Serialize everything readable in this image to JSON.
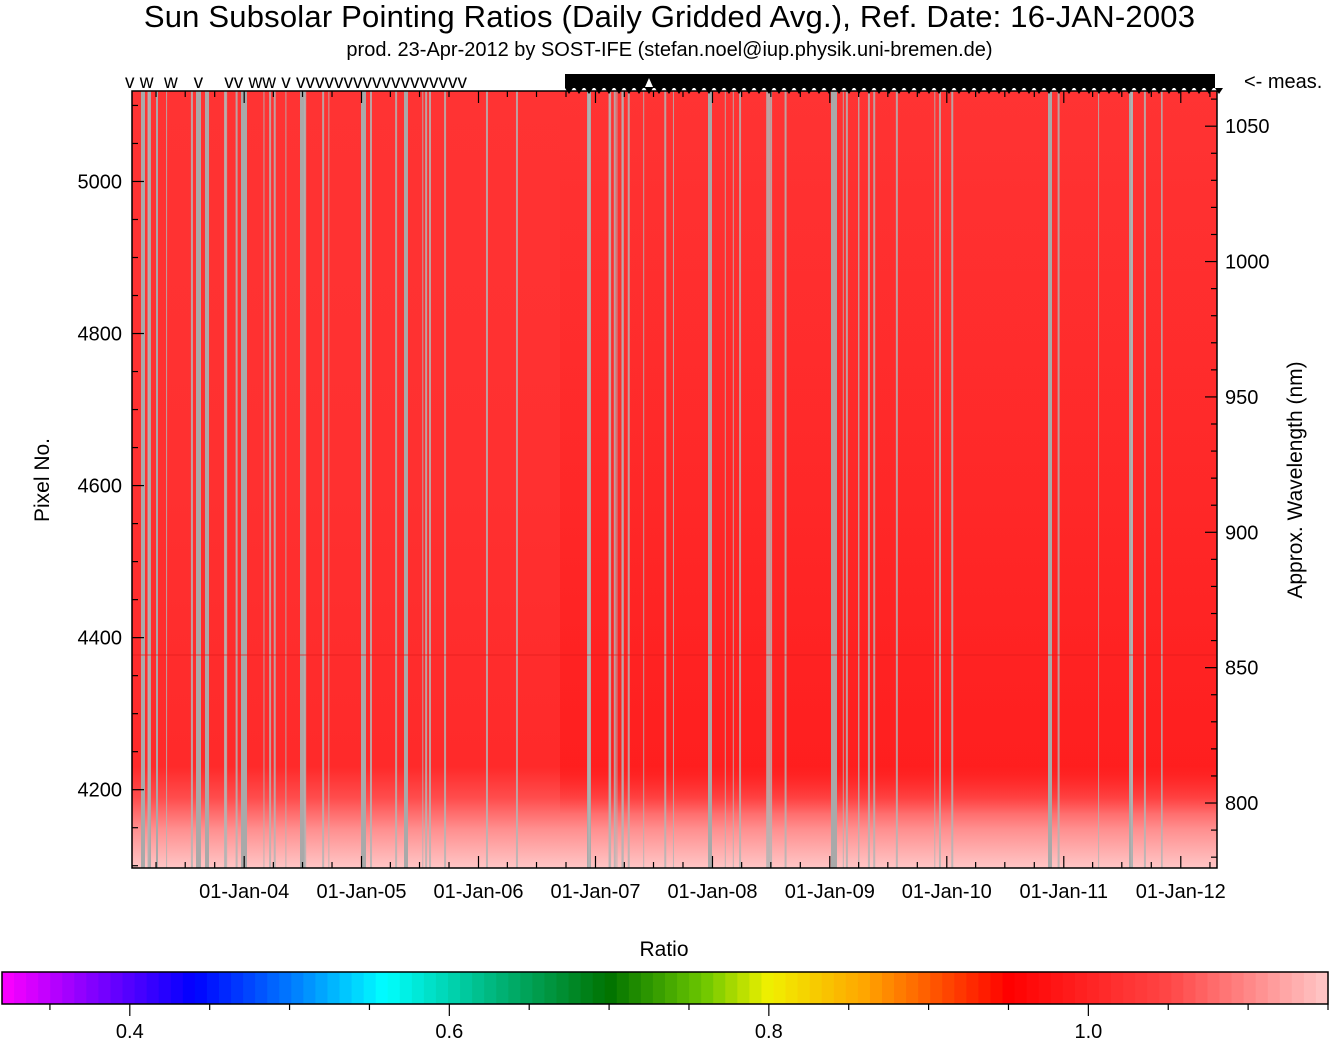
{
  "header": {
    "title": "Sun Subsolar Pointing Ratios (Daily Gridded Avg.), Ref. Date: 16-JAN-2003",
    "subtitle": "prod. 23-Apr-2012 by SOST-IFE (stefan.noel@iup.physik.uni-bremen.de)"
  },
  "chart_data": {
    "type": "heatmap",
    "x_axis": {
      "tick_labels": [
        "01-Jan-04",
        "01-Jan-05",
        "01-Jan-06",
        "01-Jan-07",
        "01-Jan-08",
        "01-Jan-09",
        "01-Jan-10",
        "01-Jan-11",
        "01-Jan-12"
      ],
      "range": [
        "2003-01-16",
        "2012-04-23"
      ]
    },
    "y_axis_left": {
      "label": "Pixel No.",
      "ticks": [
        4200,
        4400,
        4600,
        4800,
        5000
      ],
      "range": [
        4097,
        5119
      ]
    },
    "y_axis_right": {
      "label": "Approx. Wavelength (nm)",
      "ticks": [
        800,
        850,
        900,
        950,
        1000,
        1050
      ],
      "range": [
        776,
        1063
      ]
    },
    "measurement_marker_label": "<- meas.",
    "measurement_marker_letters": "v w  w   v    vv ww v vvvvvvvvvvvvvvvvvv",
    "colorbar": {
      "label": "Ratio",
      "range": [
        0.32,
        1.15
      ],
      "ticks": [
        "0.4",
        "0.6",
        "0.8",
        "1.0"
      ]
    },
    "values_summary": {
      "main_ratio": 0.98,
      "band_near_4200_ratio": 0.96,
      "low_pixel_ratio_range": [
        1.02,
        1.12
      ]
    },
    "grid": false,
    "legend": "colorbar at bottom"
  }
}
